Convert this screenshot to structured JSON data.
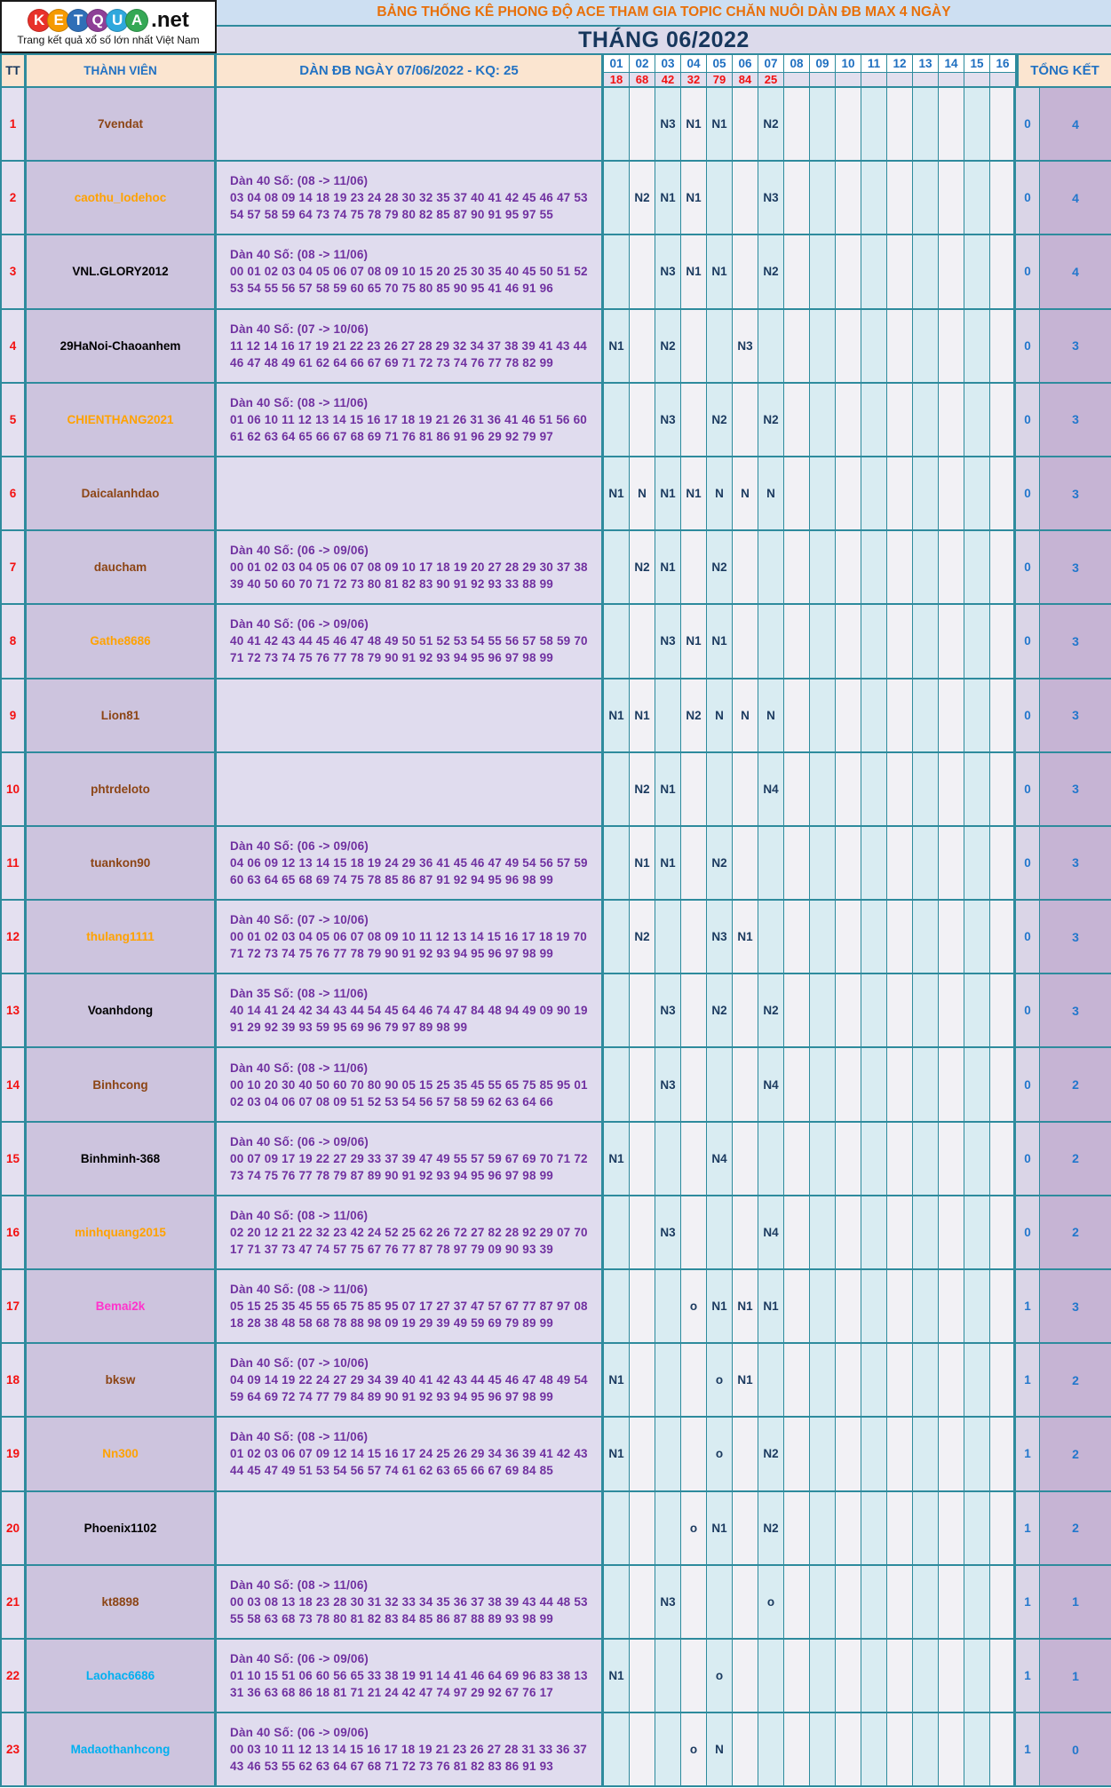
{
  "logo": {
    "letters": [
      {
        "ch": "K",
        "color": "#e8312a"
      },
      {
        "ch": "E",
        "color": "#f59a00"
      },
      {
        "ch": "T",
        "color": "#2f6fb7"
      },
      {
        "ch": "Q",
        "color": "#8e3f97"
      },
      {
        "ch": "U",
        "color": "#2fa8dd"
      },
      {
        "ch": "A",
        "color": "#35a855"
      }
    ],
    "suffix": ".net",
    "tagline": "Trang kết quả xổ số lớn nhất Việt Nam"
  },
  "header": {
    "title": "BẢNG THỐNG KÊ PHONG ĐỘ ACE THAM GIA TOPIC CHĂN NUÔI DÀN ĐB MAX 4 NGÀY",
    "month": "THÁNG 06/2022"
  },
  "colors": {
    "border_teal": "#2e8b9d",
    "header_peach": "#fbe5d0",
    "title_bar_blue": "#cddff2",
    "title_bar_lavender": "#dcdaeb",
    "result_red": "#f31111",
    "mark_navy": "#1b3a5f",
    "header_blue": "#2272c3",
    "dan_purple": "#7030a0",
    "day_col_cyan": "#d9ecf2",
    "day_col_gray": "#f2f1f5",
    "total_col_purple": "#c6b4d4"
  },
  "table": {
    "col_tt": "TT",
    "col_member": "THÀNH VIÊN",
    "col_dan": "DÀN ĐB NGÀY 07/06/2022 - KQ: 25",
    "col_total": "TỔNG KẾT",
    "day_headers": [
      "01",
      "02",
      "03",
      "04",
      "05",
      "06",
      "07",
      "08",
      "09",
      "10",
      "11",
      "12",
      "13",
      "14",
      "15",
      "16"
    ],
    "day_results": [
      "18",
      "68",
      "42",
      "32",
      "79",
      "84",
      "25",
      "",
      "",
      "",
      "",
      "",
      "",
      "",
      "",
      ""
    ],
    "rows": [
      {
        "tt": "1",
        "member": "7vendat",
        "member_color": "#8c4515",
        "dan_title": "",
        "dan_line1": "",
        "dan_line2": "",
        "marks": {
          "3": "N3",
          "4": "N1",
          "5": "N1",
          "7": "N2"
        },
        "total_o": "0",
        "total_n": "4"
      },
      {
        "tt": "2",
        "member": "caothu_lodehoc",
        "member_color": "#ffa200",
        "dan_title": "Dàn 40 Số: (08 -> 11/06)",
        "dan_line1": "03 04 08 09 14 18 19 23 24 28 30 32 35 37 40 41 42 45 46 47 53",
        "dan_line2": "54 57 58 59 64 73 74 75 78 79 80 82 85 87 90 91 95 97 55",
        "marks": {
          "2": "N2",
          "3": "N1",
          "4": "N1",
          "7": "N3"
        },
        "total_o": "0",
        "total_n": "4"
      },
      {
        "tt": "3",
        "member": "VNL.GLORY2012",
        "member_color": "#000000",
        "dan_title": "Dàn 40 Số: (08 -> 11/06)",
        "dan_line1": "00 01 02 03 04 05 06 07 08 09 10 15 20 25 30 35 40 45 50 51 52",
        "dan_line2": "53 54 55 56 57 58 59 60 65 70 75 80 85 90 95 41 46 91 96",
        "marks": {
          "3": "N3",
          "4": "N1",
          "5": "N1",
          "7": "N2"
        },
        "total_o": "0",
        "total_n": "4"
      },
      {
        "tt": "4",
        "member": "29HaNoi-Chaoanhem",
        "member_color": "#000000",
        "dan_title": "Dàn 40 Số: (07 -> 10/06)",
        "dan_line1": "11 12 14 16 17 19 21 22 23 26 27 28 29 32 34 37 38 39 41 43 44",
        "dan_line2": "46 47 48 49 61 62 64 66 67 69 71 72 73 74 76 77 78 82 99",
        "marks": {
          "1": "N1",
          "3": "N2",
          "6": "N3"
        },
        "total_o": "0",
        "total_n": "3"
      },
      {
        "tt": "5",
        "member": "CHIENTHANG2021",
        "member_color": "#ffa200",
        "dan_title": "Dàn 40 Số: (08 -> 11/06)",
        "dan_line1": "01 06 10 11 12 13 14 15 16 17 18 19 21 26 31 36 41 46 51 56 60",
        "dan_line2": "61 62 63 64 65 66 67 68 69 71 76 81 86 91 96 29 92 79 97",
        "marks": {
          "3": "N3",
          "5": "N2",
          "7": "N2"
        },
        "total_o": "0",
        "total_n": "3"
      },
      {
        "tt": "6",
        "member": "Daicalanhdao",
        "member_color": "#8c4515",
        "dan_title": "",
        "dan_line1": "",
        "dan_line2": "",
        "marks": {
          "1": "N1",
          "2": "N",
          "3": "N1",
          "4": "N1",
          "5": "N",
          "6": "N",
          "7": "N"
        },
        "total_o": "0",
        "total_n": "3"
      },
      {
        "tt": "7",
        "member": "daucham",
        "member_color": "#8c4515",
        "dan_title": "Dàn 40 Số: (06 -> 09/06)",
        "dan_line1": "00 01 02 03 04 05 06 07 08 09 10 17 18 19 20 27 28 29 30 37 38",
        "dan_line2": "39 40 50 60 70 71 72 73 80 81 82 83 90 91 92 93 33 88 99",
        "marks": {
          "2": "N2",
          "3": "N1",
          "5": "N2"
        },
        "total_o": "0",
        "total_n": "3"
      },
      {
        "tt": "8",
        "member": "Gathe8686",
        "member_color": "#ffa200",
        "dan_title": "Dàn 40 Số: (06 -> 09/06)",
        "dan_line1": "40 41 42 43 44 45 46 47 48 49 50 51 52 53 54 55 56 57 58 59 70",
        "dan_line2": "71 72 73 74 75 76 77 78 79 90 91 92 93 94 95 96 97 98 99",
        "marks": {
          "3": "N3",
          "4": "N1",
          "5": "N1"
        },
        "total_o": "0",
        "total_n": "3"
      },
      {
        "tt": "9",
        "member": "Lion81",
        "member_color": "#8c4515",
        "dan_title": "",
        "dan_line1": "",
        "dan_line2": "",
        "marks": {
          "1": "N1",
          "2": "N1",
          "4": "N2",
          "5": "N",
          "6": "N",
          "7": "N"
        },
        "total_o": "0",
        "total_n": "3"
      },
      {
        "tt": "10",
        "member": "phtrdeloto",
        "member_color": "#8c4515",
        "dan_title": "",
        "dan_line1": "",
        "dan_line2": "",
        "marks": {
          "2": "N2",
          "3": "N1",
          "7": "N4"
        },
        "total_o": "0",
        "total_n": "3"
      },
      {
        "tt": "11",
        "member": "tuankon90",
        "member_color": "#8c4515",
        "dan_title": "Dàn 40 Số: (06 -> 09/06)",
        "dan_line1": "04 06 09 12 13 14 15 18 19 24 29 36 41 45 46 47 49 54 56 57 59",
        "dan_line2": "60 63 64 65 68 69 74 75 78 85 86 87 91 92 94 95 96 98 99",
        "marks": {
          "2": "N1",
          "3": "N1",
          "5": "N2"
        },
        "total_o": "0",
        "total_n": "3"
      },
      {
        "tt": "12",
        "member": "thulang1111",
        "member_color": "#ffa200",
        "dan_title": "Dàn 40 Số: (07 -> 10/06)",
        "dan_line1": "00 01 02 03 04 05 06 07 08 09 10 11 12 13 14 15 16 17 18 19 70",
        "dan_line2": "71 72 73 74 75 76 77 78 79 90 91 92 93 94 95 96 97 98 99",
        "marks": {
          "2": "N2",
          "5": "N3",
          "6": "N1"
        },
        "total_o": "0",
        "total_n": "3"
      },
      {
        "tt": "13",
        "member": "Voanhdong",
        "member_color": "#000000",
        "dan_title": "Dàn 35 Số: (08 -> 11/06)",
        "dan_line1": "40 14 41 24 42 34 43 44 54 45 64 46 74 47 84 48 94 49 09 90 19",
        "dan_line2": "91 29 92 39 93 59 95 69 96 79 97 89 98 99",
        "marks": {
          "3": "N3",
          "5": "N2",
          "7": "N2"
        },
        "total_o": "0",
        "total_n": "3"
      },
      {
        "tt": "14",
        "member": "Binhcong",
        "member_color": "#8c4515",
        "dan_title": "Dàn 40 Số: (08 -> 11/06)",
        "dan_line1": "00 10 20 30 40 50 60 70 80 90 05 15 25 35 45 55 65 75 85 95 01",
        "dan_line2": "02 03 04 06 07 08 09 51 52 53 54 56 57 58 59 62 63 64 66",
        "marks": {
          "3": "N3",
          "7": "N4"
        },
        "total_o": "0",
        "total_n": "2"
      },
      {
        "tt": "15",
        "member": "Binhminh-368",
        "member_color": "#000000",
        "dan_title": "Dàn 40 Số: (06 -> 09/06)",
        "dan_line1": "00 07 09 17 19 22 27 29 33 37 39 47 49 55 57 59 67 69 70 71 72",
        "dan_line2": "73 74 75 76 77 78 79 87 89 90 91 92 93 94 95 96 97 98 99",
        "marks": {
          "1": "N1",
          "5": "N4"
        },
        "total_o": "0",
        "total_n": "2"
      },
      {
        "tt": "16",
        "member": "minhquang2015",
        "member_color": "#ffa200",
        "dan_title": "Dàn 40 Số: (08 -> 11/06)",
        "dan_line1": "02 20 12 21 22 32 23 42 24 52 25 62 26 72 27 82 28 92 29 07 70",
        "dan_line2": "17 71 37 73 47 74 57 75 67 76 77 87 78 97 79 09 90 93 39",
        "marks": {
          "3": "N3",
          "7": "N4"
        },
        "total_o": "0",
        "total_n": "2"
      },
      {
        "tt": "17",
        "member": "Bemai2k",
        "member_color": "#ff33cc",
        "dan_title": "Dàn 40 Số: (08 -> 11/06)",
        "dan_line1": "05 15 25 35 45 55 65 75 85 95 07 17 27 37 47 57 67 77 87 97 08",
        "dan_line2": "18 28 38 48 58 68 78 88 98 09 19 29 39 49 59 69 79 89 99",
        "marks": {
          "4": "o",
          "5": "N1",
          "6": "N1",
          "7": "N1"
        },
        "total_o": "1",
        "total_n": "3"
      },
      {
        "tt": "18",
        "member": "bksw",
        "member_color": "#8c4515",
        "dan_title": "Dàn 40 Số: (07 -> 10/06)",
        "dan_line1": "04 09 14 19 22 24 27 29 34 39 40 41 42 43 44 45 46 47 48 49 54",
        "dan_line2": "59 64 69 72 74 77 79 84 89 90 91 92 93 94 95 96 97 98 99",
        "marks": {
          "1": "N1",
          "5": "o",
          "6": "N1"
        },
        "total_o": "1",
        "total_n": "2"
      },
      {
        "tt": "19",
        "member": "Nn300",
        "member_color": "#ffa200",
        "dan_title": "Dàn 40 Số: (08 -> 11/06)",
        "dan_line1": "01 02 03 06 07 09 12 14 15 16 17 24 25 26 29 34 36 39 41 42 43",
        "dan_line2": "44 45 47 49 51 53 54 56 57 74 61 62 63 65 66 67 69 84 85",
        "marks": {
          "1": "N1",
          "5": "o",
          "7": "N2"
        },
        "total_o": "1",
        "total_n": "2"
      },
      {
        "tt": "20",
        "member": "Phoenix1102",
        "member_color": "#000000",
        "dan_title": "",
        "dan_line1": "",
        "dan_line2": "",
        "marks": {
          "4": "o",
          "5": "N1",
          "7": "N2"
        },
        "total_o": "1",
        "total_n": "2"
      },
      {
        "tt": "21",
        "member": "kt8898",
        "member_color": "#8c4515",
        "dan_title": "Dàn 40 Số: (08 -> 11/06)",
        "dan_line1": "00 03 08 13 18 23 28 30 31 32 33 34 35 36 37 38 39 43 44 48 53",
        "dan_line2": "55 58 63 68 73 78 80 81 82 83 84 85 86 87 88 89 93 98 99",
        "marks": {
          "3": "N3",
          "7": "o"
        },
        "total_o": "1",
        "total_n": "1"
      },
      {
        "tt": "22",
        "member": "Laohac6686",
        "member_color": "#00b0f0",
        "dan_title": "Dàn 40 Số: (06 -> 09/06)",
        "dan_line1": "01 10 15 51 06 60 56 65 33 38 19 91 14 41 46 64 69 96 83 38 13",
        "dan_line2": "31 36 63 68 86 18 81 71 21 24 42 47 74 97 29 92 67 76 17",
        "marks": {
          "1": "N1",
          "5": "o"
        },
        "total_o": "1",
        "total_n": "1"
      },
      {
        "tt": "23",
        "member": "Madaothanhcong",
        "member_color": "#00b0f0",
        "dan_title": "Dàn 40 Số: (06 -> 09/06)",
        "dan_line1": "00 03 10 11 12 13 14 15 16 17 18 19 21 23 26 27 28 31 33 36 37",
        "dan_line2": "43 46 53 55 62 63 64 67 68 71 72 73 76 81 82 83 86 91 93",
        "marks": {
          "4": "o",
          "5": "N"
        },
        "total_o": "1",
        "total_n": "0"
      }
    ]
  }
}
